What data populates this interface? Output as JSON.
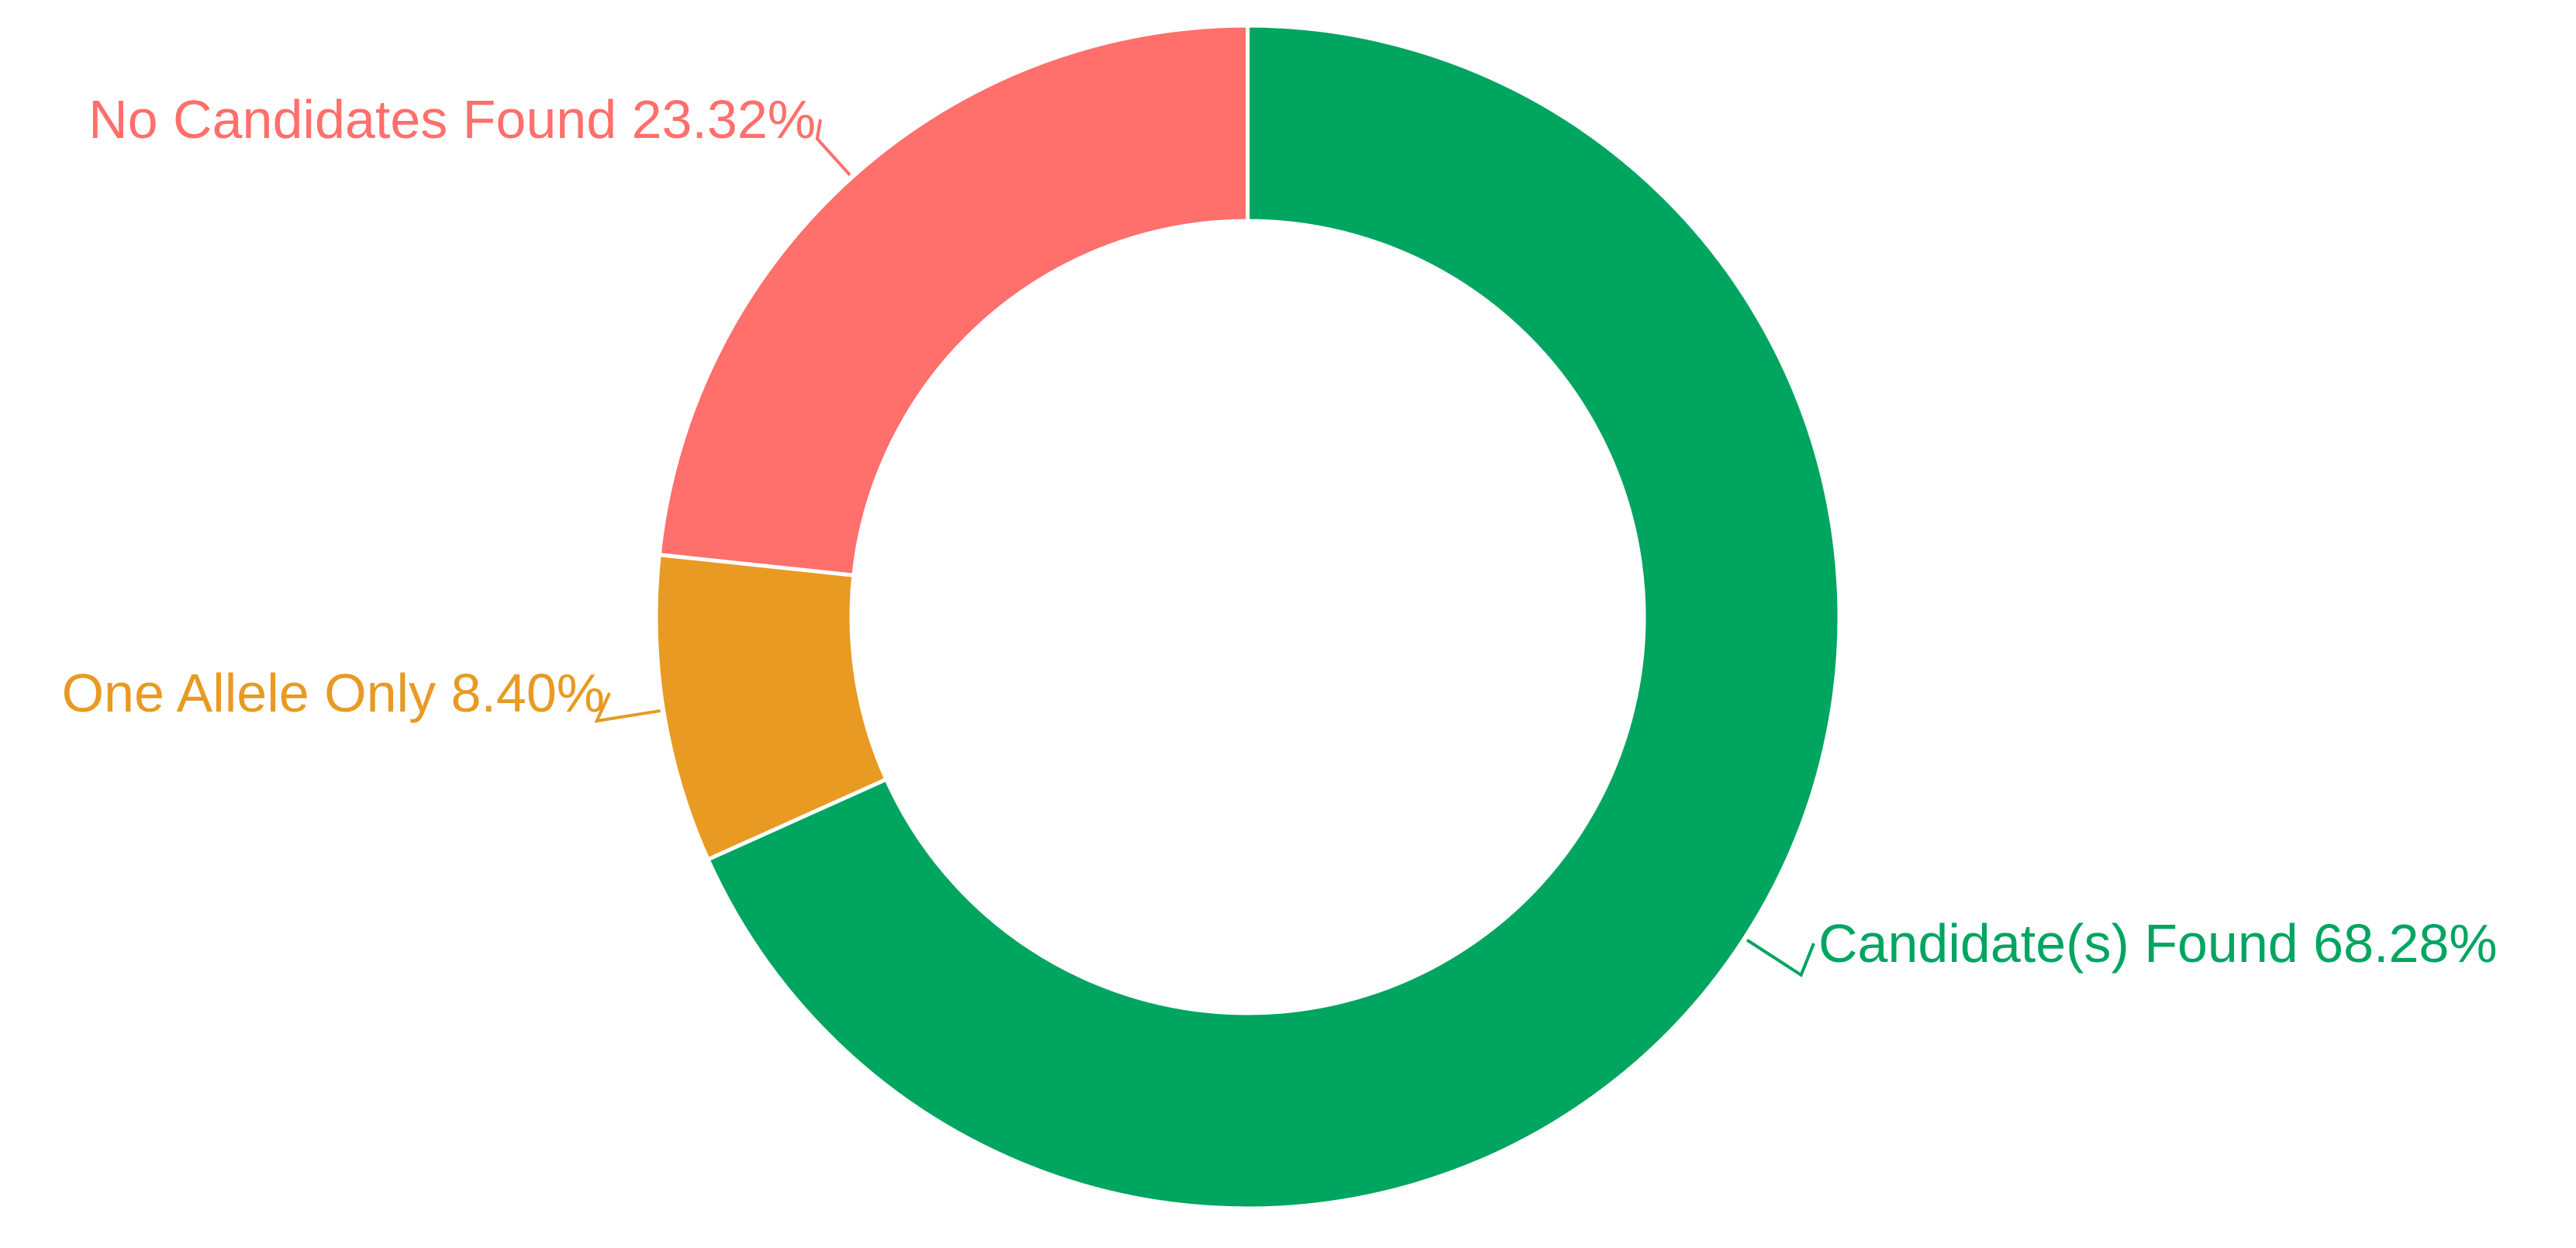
{
  "chart_data": {
    "type": "pie",
    "variant": "donut",
    "slices": [
      {
        "label": "Candidate(s) Found",
        "value": 68.28,
        "display": "68.28%",
        "color": "#00A560"
      },
      {
        "label": "One Allele Only",
        "value": 8.4,
        "display": "8.40%",
        "color": "#E89A22"
      },
      {
        "label": "No Candidates Found",
        "value": 23.32,
        "display": "23.32%",
        "color": "#FF6F6B"
      }
    ],
    "start_angle_deg": 0,
    "direction": "clockwise",
    "separator_color": "#ffffff"
  }
}
